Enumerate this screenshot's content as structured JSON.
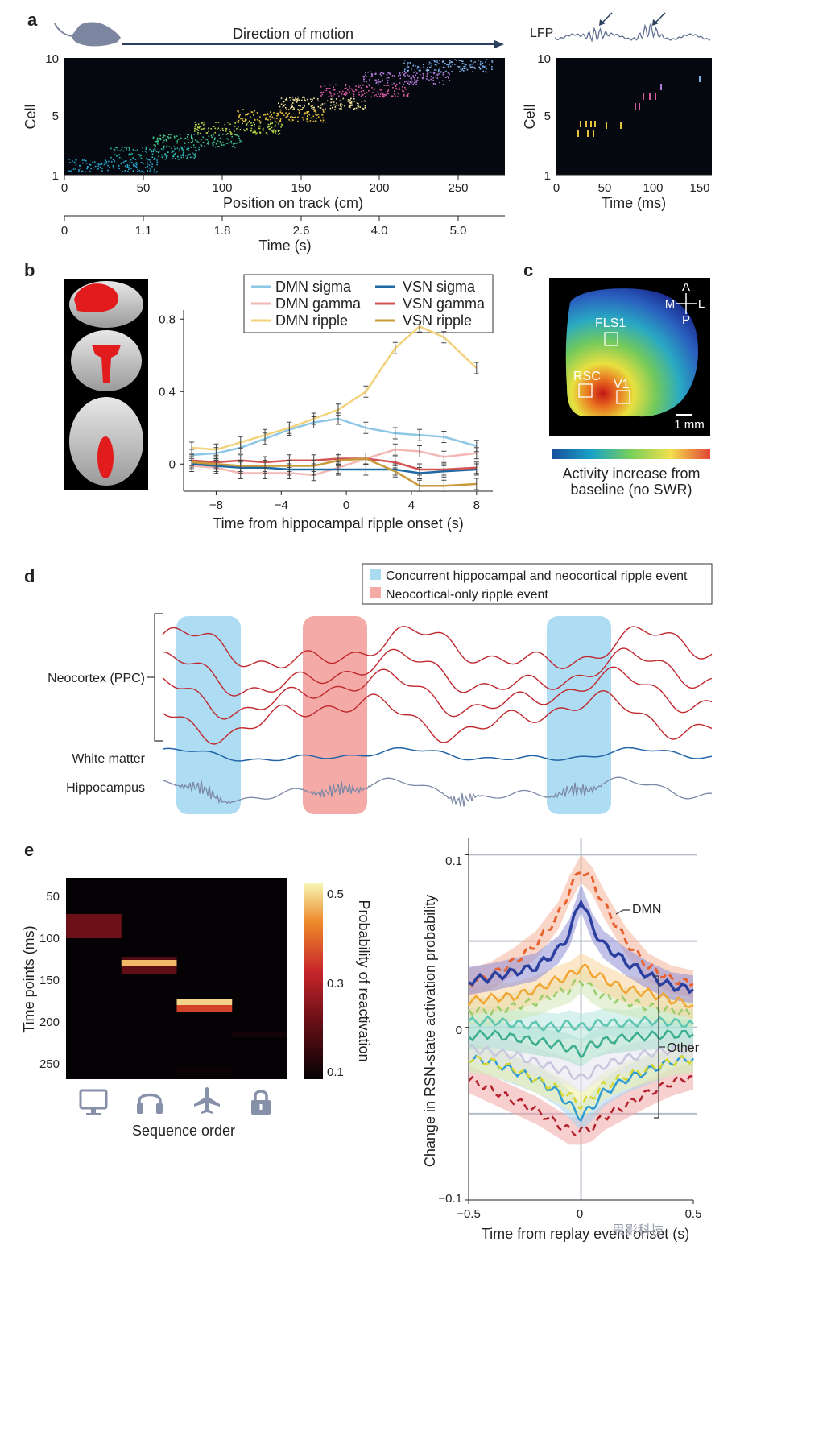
{
  "panels": {
    "a": {
      "label": "a",
      "direction_label": "Direction of motion",
      "lfp_label": "LFP",
      "raster_ylabel": "Cell",
      "raster_yticks": [
        "10",
        "5",
        "1"
      ],
      "position_xlabel": "Position on track (cm)",
      "position_xticks": [
        "0",
        "50",
        "100",
        "150",
        "200",
        "250"
      ],
      "time_xlabel": "Time (s)",
      "time_xticks": [
        "0",
        "1.1",
        "1.8",
        "2.6",
        "4.0",
        "5.0"
      ],
      "replay_ylabel": "Cell",
      "replay_yticks": [
        "10",
        "5",
        "1"
      ],
      "replay_xlabel": "Time (ms)",
      "replay_xticks": [
        "0",
        "50",
        "100",
        "150"
      ],
      "mouse_icon": "mouse-icon"
    },
    "b": {
      "label": "b",
      "brain_icon": "brain-slices",
      "legend": [
        "DMN sigma",
        "VSN sigma",
        "DMN gamma",
        "VSN gamma",
        "DMN ripple",
        "VSN ripple"
      ]
    },
    "c": {
      "label": "c",
      "orientation": {
        "a": "A",
        "p": "P",
        "m": "M",
        "l": "L"
      },
      "regions": [
        "FLS1",
        "RSC",
        "V1"
      ],
      "scale_label": "1 mm",
      "colorbar_label_1": "Activity increase from",
      "colorbar_label_2": "baseline (no SWR)"
    },
    "d": {
      "label": "d",
      "legend_blue": "Concurrent hippocampal and neocortical ripple event",
      "legend_red": "Neocortical-only ripple event",
      "trace_neocortex": "Neocortex (PPC)",
      "trace_white_matter": "White matter",
      "trace_hippocampus": "Hippocampus"
    },
    "e": {
      "label": "e",
      "heat_ylabel": "Time points (ms)",
      "heat_yticks": [
        "50",
        "100",
        "150",
        "200",
        "250"
      ],
      "heat_xlabel": "Sequence order",
      "colorbar_title": "Probability of reactivation",
      "colorbar_ticks": [
        "0.5",
        "0.3",
        "0.1"
      ],
      "icons": [
        "monitor-icon",
        "headphones-icon",
        "airplane-icon",
        "lock-icon"
      ],
      "replay_ylabel": "Change in RSN-state activation probability",
      "replay_yticks": [
        "0.1",
        "0",
        "−0.1"
      ],
      "replay_xlabel": "Time from replay event onset (s)",
      "replay_xticks": [
        "−0.5",
        "0",
        "0.5"
      ],
      "anno_dmn": "DMN",
      "anno_other": "Other"
    }
  },
  "watermark": "思影科技",
  "chart_data": [
    {
      "type": "line",
      "xlabel": "Time from hippocampal ripple onset (s)",
      "ylabel": "",
      "x": [
        -9.5,
        -8,
        -6.5,
        -5,
        -3.5,
        -2,
        -0.5,
        1.2,
        3,
        4.5,
        6,
        8
      ],
      "xlim": [
        -10,
        9
      ],
      "ylim": [
        -0.15,
        0.85
      ],
      "xticks": [
        -8,
        -4,
        0,
        4,
        8
      ],
      "yticks": [
        0,
        0.4,
        0.8
      ],
      "series": [
        {
          "name": "DMN sigma",
          "color": "#8ec7e6",
          "values": [
            0.05,
            0.06,
            0.09,
            0.14,
            0.19,
            0.23,
            0.25,
            0.2,
            0.17,
            0.16,
            0.15,
            0.1
          ]
        },
        {
          "name": "DMN gamma",
          "color": "#f2b8b5",
          "values": [
            -0.01,
            -0.02,
            -0.05,
            -0.05,
            -0.05,
            -0.06,
            -0.02,
            0.03,
            0.08,
            0.07,
            0.04,
            0.06
          ]
        },
        {
          "name": "DMN ripple",
          "color": "#f2d27a",
          "values": [
            0.09,
            0.08,
            0.12,
            0.16,
            0.2,
            0.25,
            0.3,
            0.4,
            0.64,
            0.76,
            0.7,
            0.53
          ]
        },
        {
          "name": "VSN sigma",
          "color": "#1f6aa5",
          "values": [
            0.0,
            -0.01,
            -0.02,
            -0.02,
            -0.03,
            -0.03,
            -0.03,
            -0.03,
            -0.03,
            -0.05,
            -0.04,
            -0.03
          ]
        },
        {
          "name": "VSN gamma",
          "color": "#d15452",
          "values": [
            0.02,
            0.01,
            0.02,
            0.01,
            0.02,
            0.02,
            0.03,
            0.03,
            0.01,
            -0.03,
            -0.03,
            -0.02
          ]
        },
        {
          "name": "VSN ripple",
          "color": "#c89a3b",
          "values": [
            0.01,
            0.0,
            -0.01,
            -0.01,
            -0.01,
            -0.01,
            0.02,
            0.03,
            -0.04,
            -0.12,
            -0.12,
            -0.11
          ]
        }
      ]
    },
    {
      "type": "heatmap",
      "xlabel": "Sequence order",
      "ylabel": "Time points (ms)",
      "categories": [
        "monitor",
        "headphones",
        "airplane",
        "lock"
      ],
      "rows": [
        {
          "col": 0,
          "t0": 65,
          "t1": 95,
          "value": 0.24
        },
        {
          "col": 1,
          "t0": 118,
          "t1": 122,
          "value": 0.2
        },
        {
          "col": 1,
          "t0": 122,
          "t1": 130,
          "value": 0.5
        },
        {
          "col": 1,
          "t0": 130,
          "t1": 140,
          "value": 0.22
        },
        {
          "col": 2,
          "t0": 170,
          "t1": 178,
          "value": 0.52
        },
        {
          "col": 2,
          "t0": 178,
          "t1": 186,
          "value": 0.38
        },
        {
          "col": 3,
          "t0": 212,
          "t1": 218,
          "value": 0.12
        },
        {
          "col": 2,
          "t0": 255,
          "t1": 262,
          "value": 0.11
        },
        {
          "col": 1,
          "t0": 25,
          "t1": 30,
          "value": 0.1
        }
      ],
      "ylim": [
        20,
        270
      ],
      "clim": [
        0.1,
        0.55
      ]
    },
    {
      "type": "line",
      "xlabel": "Time from replay event onset (s)",
      "ylabel": "Change in RSN-state activation probability",
      "xlim": [
        -0.5,
        0.5
      ],
      "ylim": [
        -0.1,
        0.11
      ],
      "x": [
        -0.5,
        -0.4,
        -0.3,
        -0.2,
        -0.1,
        -0.05,
        0,
        0.05,
        0.1,
        0.2,
        0.3,
        0.4,
        0.5
      ],
      "series": [
        {
          "name": "DMN",
          "color": "#2b3f9e",
          "band": "#8f8fd6",
          "width": 3.5,
          "values": [
            0.027,
            0.029,
            0.032,
            0.035,
            0.045,
            0.055,
            0.075,
            0.058,
            0.048,
            0.038,
            0.03,
            0.024,
            0.022
          ]
        },
        {
          "color": "#e8602c",
          "band": "#f5b49a",
          "dash": true,
          "width": 3,
          "values": [
            0.026,
            0.03,
            0.038,
            0.048,
            0.065,
            0.08,
            0.092,
            0.085,
            0.072,
            0.05,
            0.035,
            0.028,
            0.025
          ]
        },
        {
          "color": "#f2a530",
          "band": "#fad49c",
          "width": 2.5,
          "values": [
            0.015,
            0.017,
            0.018,
            0.022,
            0.028,
            0.03,
            0.035,
            0.032,
            0.028,
            0.022,
            0.02,
            0.016,
            0.013
          ]
        },
        {
          "color": "#9acd6a",
          "band": "#cfe7b6",
          "dash": true,
          "width": 2.5,
          "values": [
            0.01,
            0.009,
            0.012,
            0.015,
            0.02,
            0.022,
            0.028,
            0.022,
            0.018,
            0.015,
            0.012,
            0.01,
            0.008
          ]
        },
        {
          "color": "#5fc5b3",
          "band": "#b6e6dd",
          "width": 2.5,
          "values": [
            0.003,
            0.004,
            0.002,
            0.001,
            0.0,
            0.002,
            0.0,
            0.001,
            0.003,
            0.002,
            0.004,
            0.003,
            0.002
          ]
        },
        {
          "color": "#3cae8f",
          "band": "#a8dcc8",
          "width": 2.5,
          "values": [
            -0.005,
            -0.004,
            -0.006,
            -0.008,
            -0.01,
            -0.012,
            -0.015,
            -0.01,
            -0.008,
            -0.006,
            -0.005,
            -0.004,
            -0.004
          ]
        },
        {
          "color": "#c7c7de",
          "band": "#e4e4ef",
          "width": 2.5,
          "values": [
            -0.012,
            -0.014,
            -0.016,
            -0.02,
            -0.024,
            -0.026,
            -0.03,
            -0.026,
            -0.022,
            -0.018,
            -0.015,
            -0.013,
            -0.012
          ]
        },
        {
          "color": "#d4d82f",
          "band": "#eeefa6",
          "dash": true,
          "width": 2.5,
          "values": [
            -0.018,
            -0.02,
            -0.024,
            -0.03,
            -0.036,
            -0.04,
            -0.045,
            -0.04,
            -0.034,
            -0.028,
            -0.024,
            -0.02,
            -0.018
          ]
        },
        {
          "color": "#2d9bd6",
          "band": "#a9d6ef",
          "width": 2.5,
          "values": [
            -0.018,
            -0.02,
            -0.025,
            -0.03,
            -0.038,
            -0.045,
            -0.052,
            -0.046,
            -0.038,
            -0.03,
            -0.025,
            -0.02,
            -0.018
          ]
        },
        {
          "color": "#b3202a",
          "band": "#f0a8a8",
          "dash": true,
          "width": 2.5,
          "values": [
            -0.03,
            -0.036,
            -0.042,
            -0.048,
            -0.056,
            -0.06,
            -0.06,
            -0.058,
            -0.052,
            -0.045,
            -0.038,
            -0.032,
            -0.028
          ]
        }
      ]
    }
  ]
}
